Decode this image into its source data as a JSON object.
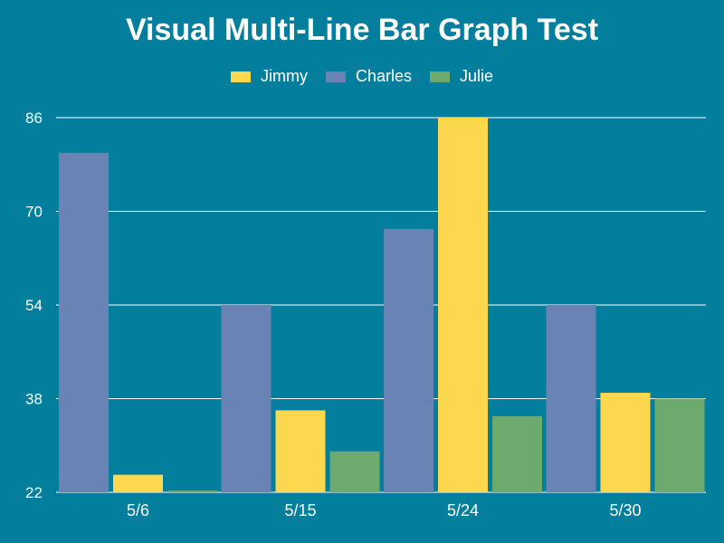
{
  "chart_data": {
    "type": "bar",
    "title": "Visual Multi-Line Bar Graph Test",
    "xlabel": "",
    "ylabel": "",
    "categories": [
      "5/6",
      "5/15",
      "5/24",
      "5/30"
    ],
    "series": [
      {
        "name": "Charles",
        "color": "#6984b4",
        "values": [
          80,
          54,
          67,
          54
        ]
      },
      {
        "name": "Jimmy",
        "color": "#fdd84e",
        "values": [
          25,
          36,
          86,
          39
        ]
      },
      {
        "name": "Julie",
        "color": "#6daa6d",
        "values": [
          22.3,
          29,
          35,
          38
        ]
      }
    ],
    "legend_order": [
      "Jimmy",
      "Charles",
      "Julie"
    ],
    "ylim": [
      22,
      86
    ],
    "yticks": [
      22,
      38,
      54,
      70,
      86
    ],
    "grid": true,
    "legend_position": "top-center"
  },
  "colors": {
    "background": "#037e9c",
    "gridline": "#ffffff",
    "text": "#ffffff"
  }
}
